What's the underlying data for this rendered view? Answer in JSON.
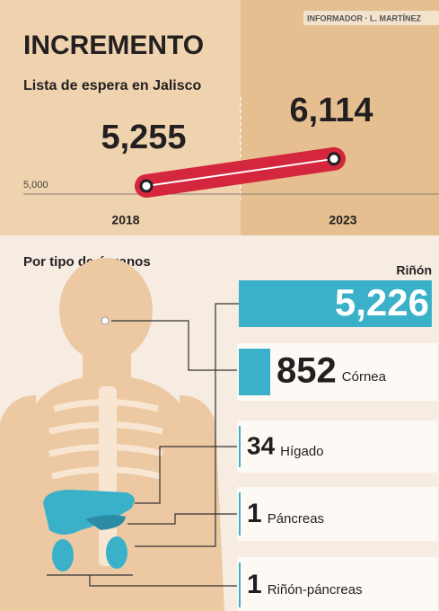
{
  "credit": "INFORMADOR · L. MARTÍNEZ",
  "chart_data": [
    {
      "type": "line",
      "title": "INCREMENTO",
      "subtitle": "Lista de espera en Jalisco",
      "categories": [
        "2018",
        "2023"
      ],
      "values": [
        5255,
        6114
      ],
      "value_labels": [
        "5,255",
        "6,114"
      ],
      "color": "#d4263d",
      "ylim": [
        4600,
        8300
      ],
      "yticks": [
        {
          "value": 5000,
          "label": "5,000"
        }
      ]
    },
    {
      "type": "hbar",
      "title": "Por tipo de órganos",
      "categories": [
        "Riñón",
        "Córnea",
        "Hígado",
        "Páncreas",
        "Riñón-páncreas"
      ],
      "values": [
        5226,
        852,
        34,
        1,
        1
      ],
      "value_labels": [
        "5,226",
        "852",
        "34",
        "1",
        "1"
      ],
      "color": "#3bb0c9",
      "xlim": [
        0,
        5300
      ]
    }
  ]
}
